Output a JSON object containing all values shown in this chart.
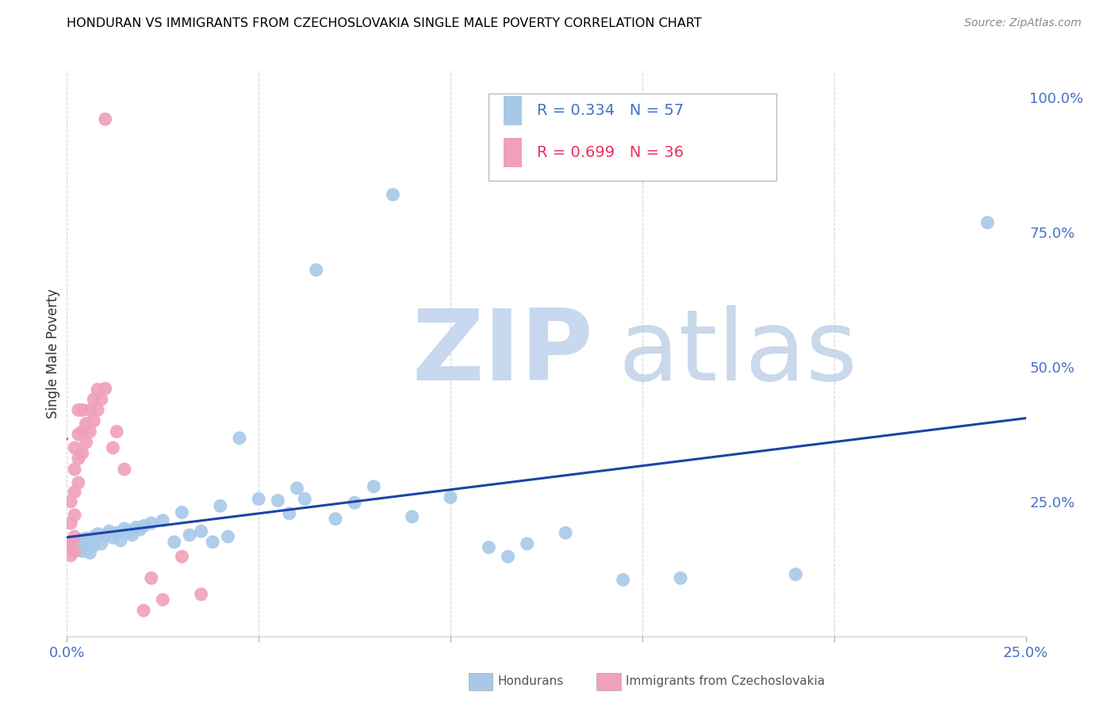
{
  "title": "HONDURAN VS IMMIGRANTS FROM CZECHOSLOVAKIA SINGLE MALE POVERTY CORRELATION CHART",
  "source": "Source: ZipAtlas.com",
  "ylabel": "Single Male Poverty",
  "right_yticks": [
    "100.0%",
    "75.0%",
    "50.0%",
    "25.0%"
  ],
  "right_ytick_vals": [
    1.0,
    0.75,
    0.5,
    0.25
  ],
  "xlim": [
    0.0,
    0.25
  ],
  "ylim": [
    0.0,
    1.05
  ],
  "blue_R": 0.334,
  "blue_N": 57,
  "pink_R": 0.699,
  "pink_N": 36,
  "blue_color": "#a8c8e8",
  "pink_color": "#f0a0b8",
  "blue_line_color": "#1a44aa",
  "pink_line_color": "#e0206080",
  "legend_blue_text_color": "#4472c4",
  "legend_pink_text_color": "#e83060",
  "watermark_zip_color": "#c8d8ee",
  "watermark_atlas_color": "#b8cce4",
  "blue_scatter": [
    [
      0.001,
      0.17
    ],
    [
      0.001,
      0.165
    ],
    [
      0.002,
      0.175
    ],
    [
      0.002,
      0.16
    ],
    [
      0.003,
      0.172
    ],
    [
      0.003,
      0.168
    ],
    [
      0.004,
      0.18
    ],
    [
      0.004,
      0.158
    ],
    [
      0.005,
      0.182
    ],
    [
      0.005,
      0.162
    ],
    [
      0.006,
      0.178
    ],
    [
      0.006,
      0.155
    ],
    [
      0.007,
      0.185
    ],
    [
      0.007,
      0.168
    ],
    [
      0.008,
      0.19
    ],
    [
      0.009,
      0.172
    ],
    [
      0.01,
      0.188
    ],
    [
      0.011,
      0.195
    ],
    [
      0.012,
      0.183
    ],
    [
      0.013,
      0.192
    ],
    [
      0.014,
      0.178
    ],
    [
      0.015,
      0.2
    ],
    [
      0.016,
      0.195
    ],
    [
      0.017,
      0.188
    ],
    [
      0.018,
      0.202
    ],
    [
      0.019,
      0.198
    ],
    [
      0.02,
      0.205
    ],
    [
      0.022,
      0.21
    ],
    [
      0.025,
      0.215
    ],
    [
      0.028,
      0.175
    ],
    [
      0.03,
      0.23
    ],
    [
      0.032,
      0.188
    ],
    [
      0.035,
      0.195
    ],
    [
      0.038,
      0.175
    ],
    [
      0.04,
      0.242
    ],
    [
      0.042,
      0.185
    ],
    [
      0.045,
      0.368
    ],
    [
      0.05,
      0.255
    ],
    [
      0.055,
      0.252
    ],
    [
      0.058,
      0.228
    ],
    [
      0.06,
      0.275
    ],
    [
      0.062,
      0.255
    ],
    [
      0.065,
      0.68
    ],
    [
      0.07,
      0.218
    ],
    [
      0.075,
      0.248
    ],
    [
      0.08,
      0.278
    ],
    [
      0.085,
      0.82
    ],
    [
      0.09,
      0.222
    ],
    [
      0.1,
      0.258
    ],
    [
      0.11,
      0.165
    ],
    [
      0.115,
      0.148
    ],
    [
      0.12,
      0.172
    ],
    [
      0.13,
      0.192
    ],
    [
      0.145,
      0.105
    ],
    [
      0.16,
      0.108
    ],
    [
      0.19,
      0.115
    ],
    [
      0.24,
      0.768
    ]
  ],
  "pink_scatter": [
    [
      0.001,
      0.15
    ],
    [
      0.001,
      0.175
    ],
    [
      0.001,
      0.21
    ],
    [
      0.001,
      0.25
    ],
    [
      0.002,
      0.158
    ],
    [
      0.002,
      0.185
    ],
    [
      0.002,
      0.225
    ],
    [
      0.002,
      0.268
    ],
    [
      0.002,
      0.31
    ],
    [
      0.002,
      0.35
    ],
    [
      0.003,
      0.285
    ],
    [
      0.003,
      0.33
    ],
    [
      0.003,
      0.375
    ],
    [
      0.003,
      0.42
    ],
    [
      0.004,
      0.34
    ],
    [
      0.004,
      0.38
    ],
    [
      0.004,
      0.42
    ],
    [
      0.005,
      0.36
    ],
    [
      0.005,
      0.395
    ],
    [
      0.006,
      0.38
    ],
    [
      0.006,
      0.42
    ],
    [
      0.007,
      0.4
    ],
    [
      0.007,
      0.44
    ],
    [
      0.008,
      0.42
    ],
    [
      0.008,
      0.458
    ],
    [
      0.009,
      0.44
    ],
    [
      0.01,
      0.46
    ],
    [
      0.01,
      0.96
    ],
    [
      0.012,
      0.35
    ],
    [
      0.013,
      0.38
    ],
    [
      0.015,
      0.31
    ],
    [
      0.02,
      0.048
    ],
    [
      0.022,
      0.108
    ],
    [
      0.025,
      0.068
    ],
    [
      0.03,
      0.148
    ],
    [
      0.035,
      0.078
    ]
  ]
}
